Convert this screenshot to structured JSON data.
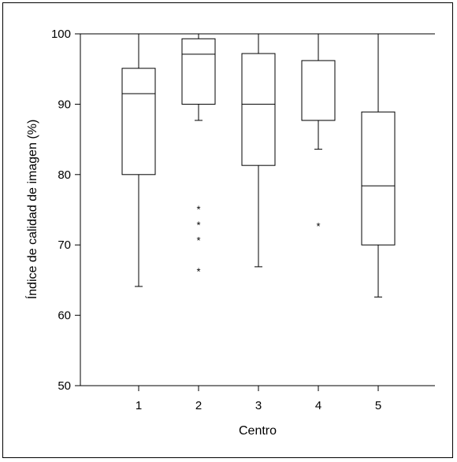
{
  "chart_data": {
    "type": "boxplot",
    "xlabel": "Centro",
    "ylabel": "Índice de calidad de imagen (%)",
    "ylim": [
      50,
      100
    ],
    "yticks": [
      50,
      60,
      70,
      80,
      90,
      100
    ],
    "categories": [
      "1",
      "2",
      "3",
      "4",
      "5"
    ],
    "boxes": [
      {
        "category": "1",
        "whisker_low": 64.1,
        "q1": 80.0,
        "median": 91.5,
        "q3": 95.1,
        "whisker_high": 100,
        "outliers": []
      },
      {
        "category": "2",
        "whisker_low": 87.7,
        "q1": 90.0,
        "median": 97.1,
        "q3": 99.3,
        "whisker_high": 100,
        "outliers": [
          75.2,
          73.0,
          70.8,
          66.4
        ]
      },
      {
        "category": "3",
        "whisker_low": 66.9,
        "q1": 81.3,
        "median": 90.0,
        "q3": 97.2,
        "whisker_high": 100,
        "outliers": []
      },
      {
        "category": "4",
        "whisker_low": 83.6,
        "q1": 87.7,
        "median": 87.7,
        "q3": 96.2,
        "whisker_high": 100,
        "outliers": [
          72.8
        ]
      },
      {
        "category": "5",
        "whisker_low": 62.6,
        "q1": 70.0,
        "median": 78.4,
        "q3": 88.9,
        "whisker_high": 100,
        "outliers": []
      }
    ],
    "grid": false,
    "top_border": true,
    "colors": {
      "line": "#000000",
      "box_fill": "#ffffff",
      "background": "#ffffff"
    }
  }
}
